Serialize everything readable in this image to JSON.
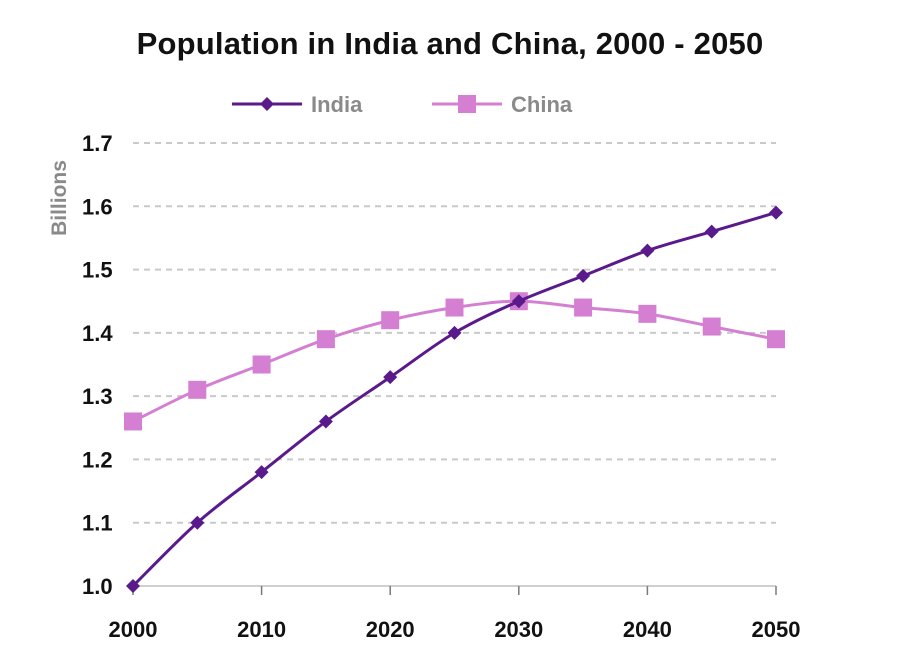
{
  "chart_data": {
    "type": "line",
    "title": "Population in India and China, 2000 - 2050",
    "xlabel": "",
    "ylabel": "Billions",
    "x": [
      2000,
      2005,
      2010,
      2015,
      2020,
      2025,
      2030,
      2035,
      2040,
      2045,
      2050
    ],
    "x_ticks": [
      2000,
      2010,
      2020,
      2030,
      2040,
      2050
    ],
    "x_tick_labels": [
      "2000",
      "2010",
      "2020",
      "2030",
      "2040",
      "2050"
    ],
    "xlim": [
      2000,
      2050
    ],
    "ylim": [
      1.0,
      1.7
    ],
    "y_ticks": [
      1.0,
      1.1,
      1.2,
      1.3,
      1.4,
      1.5,
      1.6,
      1.7
    ],
    "y_tick_labels": [
      "1.0",
      "1.1",
      "1.2",
      "1.3",
      "1.4",
      "1.5",
      "1.6",
      "1.7"
    ],
    "grid": "horizontal dashed",
    "legend_position": "top-center",
    "series": [
      {
        "name": "India",
        "marker": "diamond",
        "color": "#5b1a8c",
        "values": [
          1.0,
          1.1,
          1.18,
          1.26,
          1.33,
          1.4,
          1.45,
          1.49,
          1.53,
          1.56,
          1.59
        ]
      },
      {
        "name": "China",
        "marker": "square",
        "color": "#d47fd2",
        "values": [
          1.26,
          1.31,
          1.35,
          1.39,
          1.42,
          1.44,
          1.45,
          1.44,
          1.43,
          1.41,
          1.39
        ]
      }
    ]
  }
}
